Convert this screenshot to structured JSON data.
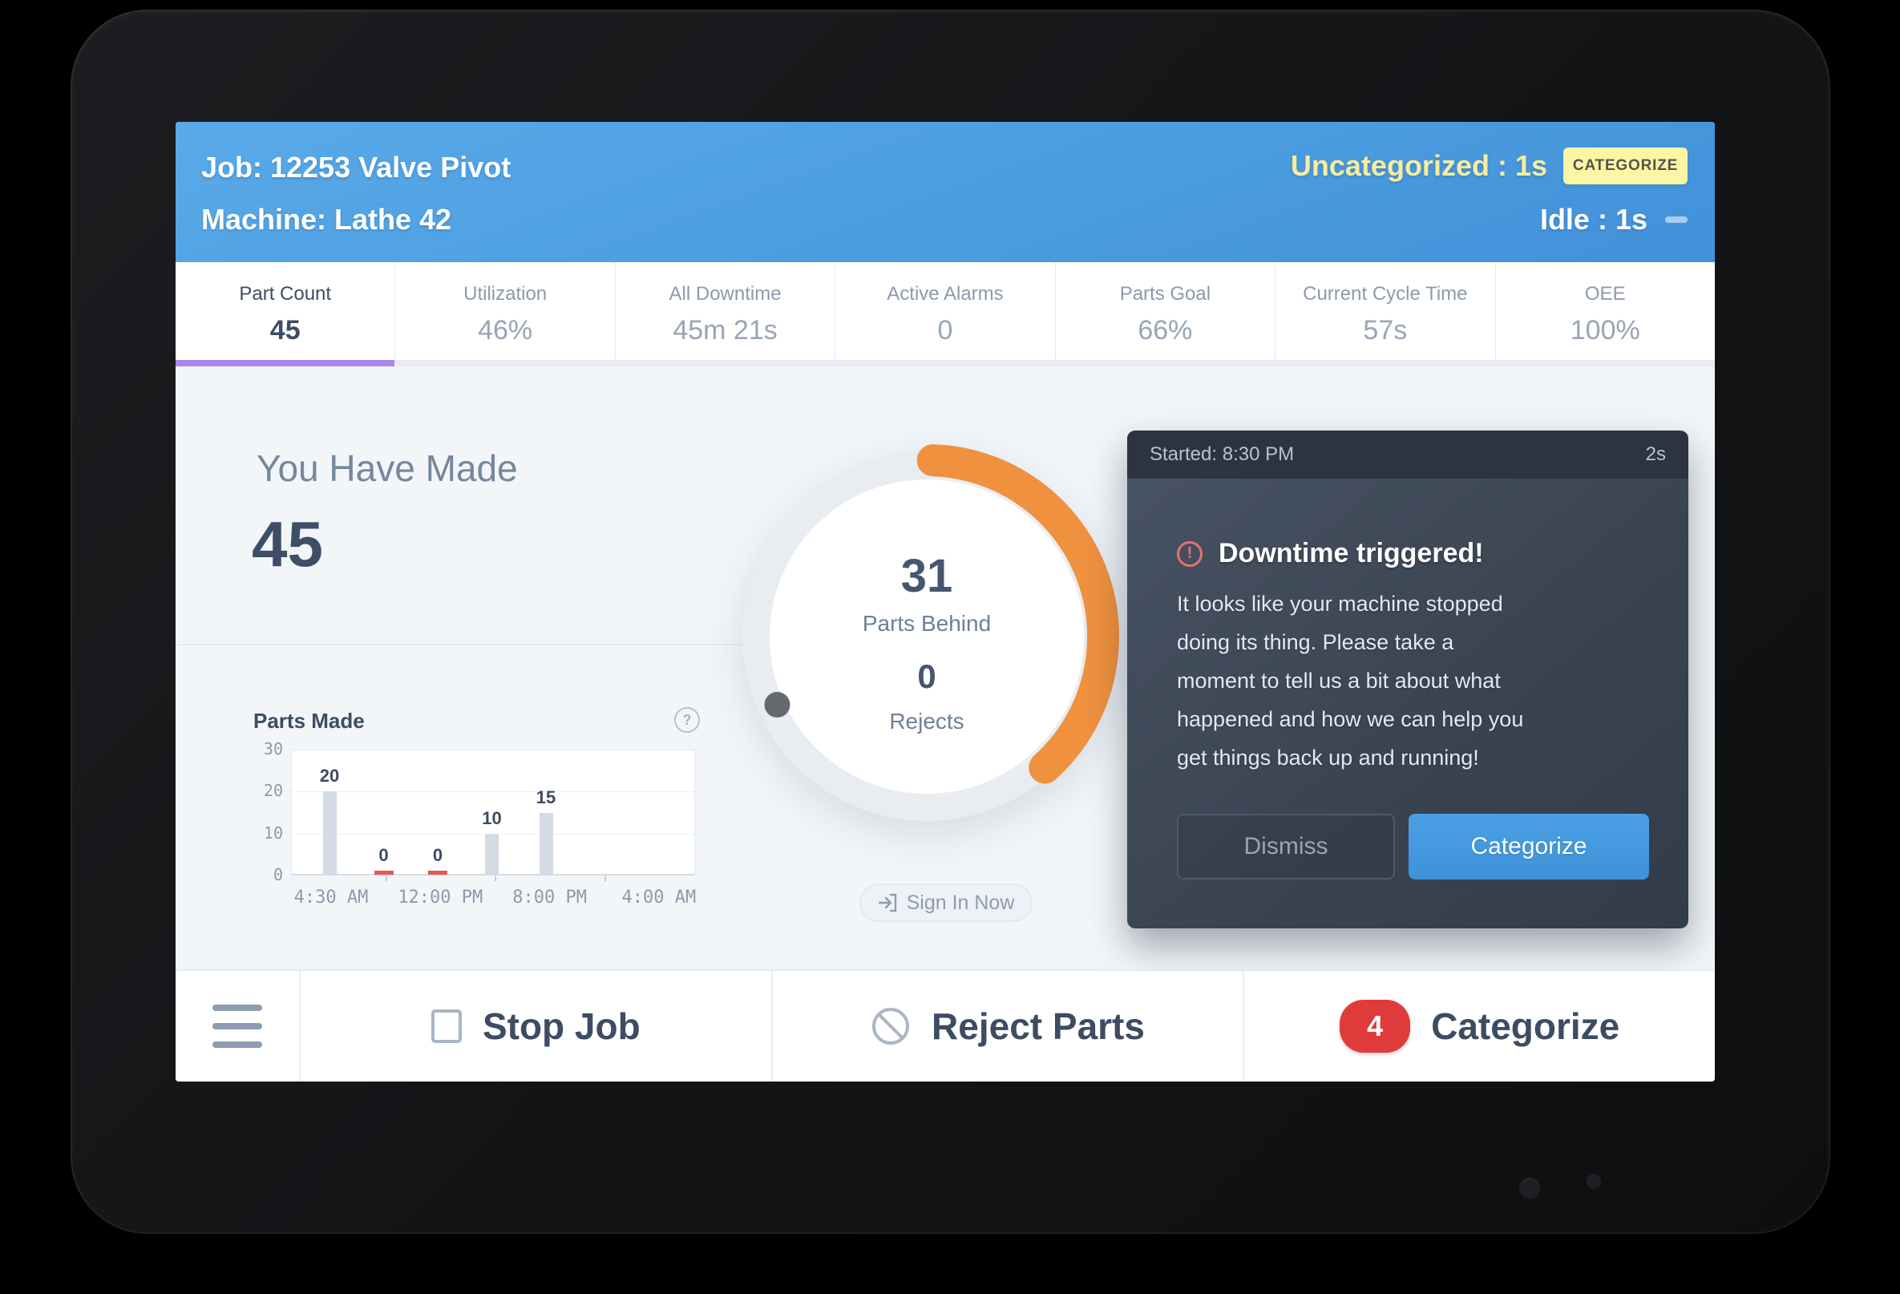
{
  "header": {
    "job": "Job: 12253 Valve Pivot",
    "machine": "Machine: Lathe 42",
    "uncategorized": "Uncategorized : 1s",
    "categorize_button": "CATEGORIZE",
    "idle": "Idle : 1s"
  },
  "stats": [
    {
      "label": "Part Count",
      "value": "45",
      "active": true
    },
    {
      "label": "Utilization",
      "value": "46%",
      "active": false
    },
    {
      "label": "All Downtime",
      "value": "45m 21s",
      "active": false
    },
    {
      "label": "Active Alarms",
      "value": "0",
      "active": false
    },
    {
      "label": "Parts Goal",
      "value": "66%",
      "active": false
    },
    {
      "label": "Current Cycle Time",
      "value": "57s",
      "active": false
    },
    {
      "label": "OEE",
      "value": "100%",
      "active": false
    }
  ],
  "production": {
    "made_label": "You Have Made",
    "made_count": "45"
  },
  "gauge": {
    "parts_behind": "31",
    "parts_behind_label": "Parts Behind",
    "rejects": "0",
    "rejects_label": "Rejects",
    "arc_start_deg": 2,
    "arc_end_deg": 138,
    "marker_deg": 245.5,
    "arc_color": "#EF913F",
    "ring_color": "#E9EDF2",
    "marker_color": "#65696F"
  },
  "sign_in": {
    "label": "Sign In Now"
  },
  "chart_data": {
    "type": "bar",
    "title": "Parts Made",
    "values": [
      20,
      0,
      0,
      10,
      15
    ],
    "bar_labels": [
      "20",
      "0",
      "0",
      "10",
      "15"
    ],
    "x_tick_labels": [
      "4:30 AM",
      "12:00 PM",
      "8:00 PM",
      "4:00 AM"
    ],
    "y_ticks": [
      0,
      10,
      20,
      30
    ],
    "ylim": [
      0,
      30
    ],
    "grid": true,
    "bar_color": "#D5DBE4",
    "zero_marker_color": "#E2574F"
  },
  "notification": {
    "started": "Started: 8:30 PM",
    "elapsed": "2s",
    "title": "Downtime triggered!",
    "body": "It looks like your machine stopped\ndoing its thing. Please take a\nmoment to tell us a bit about what\nhappened and how we can help you\nget things back up and running!",
    "dismiss_label": "Dismiss",
    "categorize_label": "Categorize"
  },
  "bottom_bar": {
    "stop_job": "Stop Job",
    "reject_parts": "Reject Parts",
    "categorize": "Categorize",
    "categorize_badge": "4"
  },
  "colors": {
    "header_blue": "#4796DC",
    "accent_purple": "#AA86EC",
    "status_yellow": "#F8ED9D",
    "alert_red": "#E8716E",
    "badge_red": "#E03B3B",
    "button_blue": "#4498E0",
    "panel_dark": "#3A4452"
  }
}
